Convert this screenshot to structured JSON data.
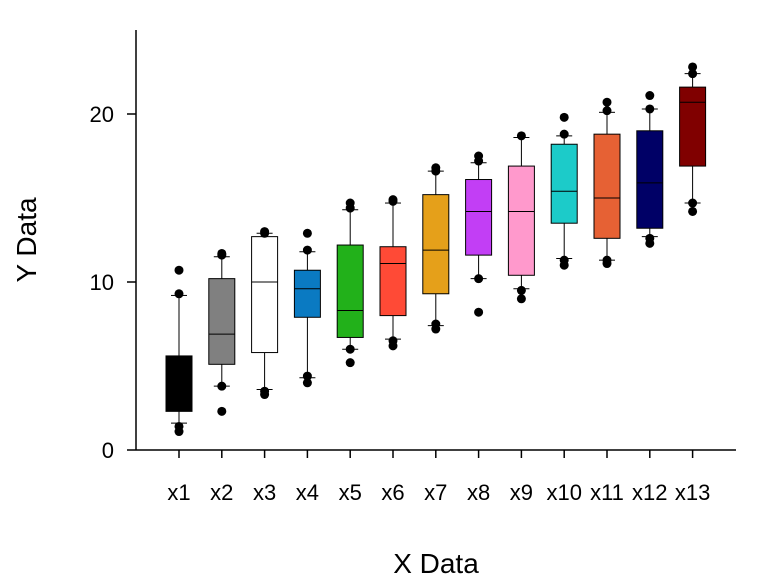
{
  "chart_data": {
    "type": "box",
    "title": "",
    "xlabel": "X Data",
    "ylabel": "Y Data",
    "ylim": [
      0,
      25
    ],
    "yticks": [
      0,
      10,
      20
    ],
    "grid": false,
    "legend": "none",
    "categories": [
      "x1",
      "x2",
      "x3",
      "x4",
      "x5",
      "x6",
      "x7",
      "x8",
      "x9",
      "x10",
      "x11",
      "x12",
      "x13"
    ],
    "boxes": [
      {
        "category": "x1",
        "color": "#000000",
        "whisker_low": 1.6,
        "q1": 2.3,
        "median": 4.0,
        "q3": 5.6,
        "whisker_high": 9.2,
        "outliers": [
          1.1,
          1.4,
          9.3,
          10.7
        ]
      },
      {
        "category": "x2",
        "color": "#808080",
        "whisker_low": 3.8,
        "q1": 5.1,
        "median": 6.9,
        "q3": 10.2,
        "whisker_high": 11.5,
        "outliers": [
          2.3,
          3.8,
          11.6,
          11.7
        ]
      },
      {
        "category": "x3",
        "color": "#ffffff",
        "whisker_low": 3.6,
        "q1": 5.8,
        "median": 10.0,
        "q3": 12.7,
        "whisker_high": 12.9,
        "outliers": [
          3.3,
          3.5,
          12.9,
          13.0
        ]
      },
      {
        "category": "x4",
        "color": "#0a7ac2",
        "whisker_low": 4.3,
        "q1": 7.9,
        "median": 9.6,
        "q3": 10.7,
        "whisker_high": 11.8,
        "outliers": [
          4.0,
          4.4,
          11.9,
          12.9
        ]
      },
      {
        "category": "x5",
        "color": "#22b11a",
        "whisker_low": 6.0,
        "q1": 6.7,
        "median": 8.3,
        "q3": 12.2,
        "whisker_high": 14.3,
        "outliers": [
          5.2,
          6.0,
          14.4,
          14.7
        ]
      },
      {
        "category": "x6",
        "color": "#ff4a36",
        "whisker_low": 6.6,
        "q1": 8.0,
        "median": 11.1,
        "q3": 12.1,
        "whisker_high": 14.7,
        "outliers": [
          6.2,
          6.5,
          14.8,
          14.9
        ]
      },
      {
        "category": "x7",
        "color": "#e5a01a",
        "whisker_low": 7.4,
        "q1": 9.3,
        "median": 11.9,
        "q3": 15.2,
        "whisker_high": 16.6,
        "outliers": [
          7.2,
          7.5,
          16.6,
          16.8
        ]
      },
      {
        "category": "x8",
        "color": "#c23ef5",
        "whisker_low": 10.2,
        "q1": 11.6,
        "median": 14.2,
        "q3": 16.1,
        "whisker_high": 17.1,
        "outliers": [
          8.2,
          10.2,
          17.2,
          17.5
        ]
      },
      {
        "category": "x9",
        "color": "#ff99cc",
        "whisker_low": 9.6,
        "q1": 10.4,
        "median": 14.2,
        "q3": 16.9,
        "whisker_high": 18.6,
        "outliers": [
          9.0,
          9.5,
          18.7
        ]
      },
      {
        "category": "x10",
        "color": "#1ccbc9",
        "whisker_low": 11.4,
        "q1": 13.5,
        "median": 15.4,
        "q3": 18.2,
        "whisker_high": 18.7,
        "outliers": [
          11.0,
          11.3,
          18.8,
          19.8
        ]
      },
      {
        "category": "x11",
        "color": "#e66134",
        "whisker_low": 11.3,
        "q1": 12.6,
        "median": 15.0,
        "q3": 18.8,
        "whisker_high": 20.1,
        "outliers": [
          11.1,
          11.3,
          20.2,
          20.7
        ]
      },
      {
        "category": "x12",
        "color": "#000066",
        "whisker_low": 12.7,
        "q1": 13.2,
        "median": 15.9,
        "q3": 19.0,
        "whisker_high": 20.3,
        "outliers": [
          12.3,
          12.6,
          20.3,
          21.1
        ]
      },
      {
        "category": "x13",
        "color": "#800000",
        "whisker_low": 14.7,
        "q1": 16.9,
        "median": 20.7,
        "q3": 21.6,
        "whisker_high": 22.4,
        "outliers": [
          14.2,
          14.7,
          22.4,
          22.8
        ]
      }
    ]
  }
}
